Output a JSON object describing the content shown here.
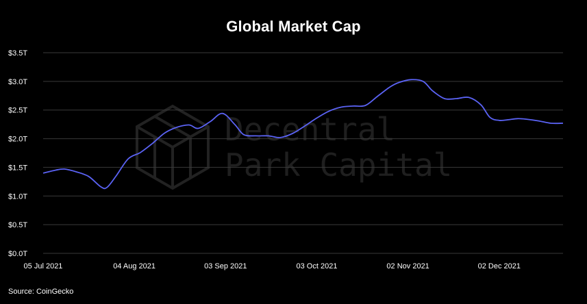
{
  "chart_data": {
    "type": "line",
    "title": "Global Market Cap",
    "source": "Source: CoinGecko",
    "watermark": [
      "Decentral",
      "Park Capital"
    ],
    "y_ticks": [
      "$0.0T",
      "$0.5T",
      "$1.0T",
      "$1.5T",
      "$2.0T",
      "$2.5T",
      "$3.0T",
      "$3.5T"
    ],
    "ylim": [
      0,
      3.5
    ],
    "x_ticks": [
      "05 Jul 2021",
      "04 Aug 2021",
      "03 Sep 2021",
      "03 Oct 2021",
      "02 Nov 2021",
      "02 Dec 2021"
    ],
    "grid": true,
    "line_color": "#5b63f5",
    "series": [
      {
        "x": [
          "2021-07-05",
          "2021-07-09",
          "2021-07-12",
          "2021-07-16",
          "2021-07-20",
          "2021-07-24",
          "2021-07-26",
          "2021-07-29",
          "2021-08-02",
          "2021-08-06",
          "2021-08-10",
          "2021-08-14",
          "2021-08-18",
          "2021-08-22",
          "2021-08-25",
          "2021-08-29",
          "2021-09-02",
          "2021-09-06",
          "2021-09-09",
          "2021-09-13",
          "2021-09-17",
          "2021-09-21",
          "2021-09-25",
          "2021-09-29",
          "2021-10-03",
          "2021-10-07",
          "2021-10-11",
          "2021-10-15",
          "2021-10-19",
          "2021-10-23",
          "2021-10-27",
          "2021-10-30",
          "2021-11-03",
          "2021-11-07",
          "2021-11-10",
          "2021-11-14",
          "2021-11-18",
          "2021-11-22",
          "2021-11-26",
          "2021-11-29",
          "2021-12-02",
          "2021-12-05",
          "2021-12-08",
          "2021-12-11",
          "2021-12-15",
          "2021-12-19",
          "2021-12-23"
        ],
        "values": [
          1.4,
          1.45,
          1.47,
          1.42,
          1.34,
          1.16,
          1.15,
          1.35,
          1.65,
          1.76,
          1.92,
          2.1,
          2.2,
          2.24,
          2.18,
          2.3,
          2.44,
          2.25,
          2.07,
          2.05,
          2.05,
          2.02,
          2.09,
          2.22,
          2.36,
          2.48,
          2.55,
          2.57,
          2.58,
          2.74,
          2.9,
          2.98,
          3.03,
          3.0,
          2.84,
          2.7,
          2.7,
          2.72,
          2.59,
          2.37,
          2.32,
          2.33,
          2.35,
          2.34,
          2.31,
          2.27,
          2.27
        ]
      }
    ]
  }
}
